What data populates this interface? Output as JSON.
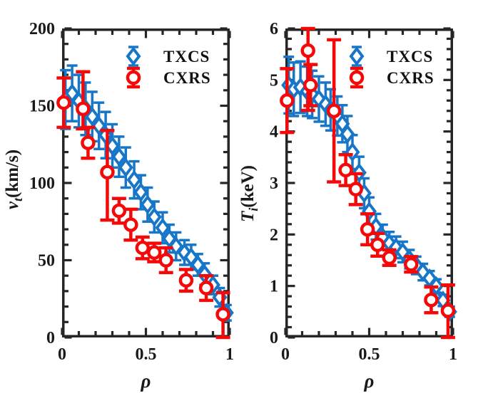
{
  "figure": {
    "background": "#ffffff",
    "axis_color": "#262626",
    "accent_colors": {
      "txcs_blue": "#1776C8",
      "cxrs_red": "#F40808"
    }
  },
  "chart_data": [
    {
      "type": "scatter",
      "title": "",
      "xlabel": "ρ",
      "ylabel": "v_t(km/s)",
      "ylabel_var": "v",
      "ylabel_sub": "t",
      "ylabel_unit": "(km/s)",
      "xlim": [
        0,
        1
      ],
      "ylim": [
        0,
        200
      ],
      "xticks": [
        0,
        0.5,
        1
      ],
      "xtick_labels": [
        "0",
        "0.5",
        "1"
      ],
      "yticks": [
        0,
        50,
        100,
        150,
        200
      ],
      "ytick_labels": [
        "0",
        "50",
        "100",
        "150",
        "200"
      ],
      "x_minor_step": 0.1,
      "y_minor_step": 10,
      "grid": false,
      "legend_position": "top-center-inside",
      "legend": [
        "TXCS",
        "CXRS"
      ],
      "series": [
        {
          "name": "TXCS",
          "marker": "diamond",
          "color": "#1776C8",
          "x": [
            0.02,
            0.06,
            0.1,
            0.14,
            0.18,
            0.22,
            0.26,
            0.3,
            0.34,
            0.38,
            0.43,
            0.47,
            0.51,
            0.55,
            0.6,
            0.64,
            0.68,
            0.73,
            0.77,
            0.81,
            0.85,
            0.9,
            0.94,
            0.98
          ],
          "y": [
            154,
            158,
            153,
            148,
            143,
            137,
            131,
            124,
            117,
            110,
            102,
            94,
            86,
            78,
            71,
            64,
            59,
            55,
            52,
            47,
            41,
            34,
            26,
            16
          ],
          "yerr": [
            19,
            18,
            17,
            17,
            16,
            15,
            15,
            14,
            13,
            13,
            12,
            11,
            11,
            10,
            10,
            9,
            9,
            8,
            8,
            7,
            7,
            6,
            6,
            5
          ]
        },
        {
          "name": "CXRS",
          "marker": "circle",
          "color": "#F40808",
          "x": [
            0.01,
            0.125,
            0.155,
            0.27,
            0.34,
            0.41,
            0.48,
            0.55,
            0.62,
            0.74,
            0.86,
            0.96
          ],
          "y": [
            152,
            148,
            126,
            107,
            82,
            73,
            58,
            55,
            50,
            37,
            32,
            15
          ],
          "yerr": [
            16,
            [
              13,
              24
            ],
            10,
            [
              31,
              27
            ],
            8,
            10,
            7,
            6,
            8,
            7,
            8,
            [
              15,
              14
            ]
          ]
        }
      ]
    },
    {
      "type": "scatter",
      "title": "",
      "xlabel": "ρ",
      "ylabel": "T_i(keV)",
      "ylabel_var": "T",
      "ylabel_sub": "i",
      "ylabel_unit": "(keV)",
      "xlim": [
        0,
        1
      ],
      "ylim": [
        0,
        6
      ],
      "xticks": [
        0,
        0.5,
        1
      ],
      "xtick_labels": [
        "0",
        "0.5",
        "1"
      ],
      "yticks": [
        0,
        1,
        2,
        3,
        4,
        5,
        6
      ],
      "ytick_labels": [
        "0",
        "1",
        "2",
        "3",
        "4",
        "5",
        "6"
      ],
      "x_minor_step": 0.1,
      "y_minor_step": 0.2,
      "grid": false,
      "legend_position": "top-center-inside",
      "legend": [
        "TXCS",
        "CXRS"
      ],
      "series": [
        {
          "name": "TXCS",
          "marker": "diamond",
          "color": "#1776C8",
          "x": [
            0.02,
            0.05,
            0.09,
            0.13,
            0.16,
            0.2,
            0.24,
            0.27,
            0.31,
            0.34,
            0.37,
            0.4,
            0.44,
            0.47,
            0.5,
            0.54,
            0.58,
            0.62,
            0.66,
            0.7,
            0.74,
            0.78,
            0.82,
            0.86,
            0.9,
            0.94,
            0.98
          ],
          "y": [
            4.9,
            4.82,
            4.86,
            4.78,
            4.72,
            4.63,
            4.53,
            4.42,
            4.3,
            4.15,
            3.95,
            3.6,
            3.2,
            2.8,
            2.45,
            2.15,
            1.95,
            1.83,
            1.75,
            1.66,
            1.52,
            1.4,
            1.27,
            1.15,
            1.0,
            0.72,
            0.5
          ],
          "yerr": [
            0.55,
            0.52,
            0.5,
            0.48,
            0.46,
            0.44,
            0.42,
            0.4,
            0.38,
            0.36,
            0.35,
            0.33,
            0.31,
            0.29,
            0.27,
            0.25,
            0.24,
            0.22,
            0.21,
            0.2,
            0.18,
            0.17,
            0.16,
            0.14,
            0.13,
            0.11,
            0.1
          ]
        },
        {
          "name": "CXRS",
          "marker": "circle",
          "color": "#F40808",
          "x": [
            0.01,
            0.135,
            0.15,
            0.29,
            0.36,
            0.42,
            0.49,
            0.55,
            0.62,
            0.75,
            0.87,
            0.97
          ],
          "y": [
            4.6,
            5.57,
            4.9,
            4.4,
            3.25,
            2.88,
            2.1,
            1.8,
            1.55,
            1.42,
            0.73,
            0.52
          ],
          "yerr": [
            0.62,
            [
              1.16,
              0.43
            ],
            0.4,
            1.38,
            0.3,
            0.3,
            0.3,
            0.22,
            0.15,
            0.15,
            0.25,
            [
              0.52,
              0.5
            ]
          ]
        }
      ]
    }
  ]
}
